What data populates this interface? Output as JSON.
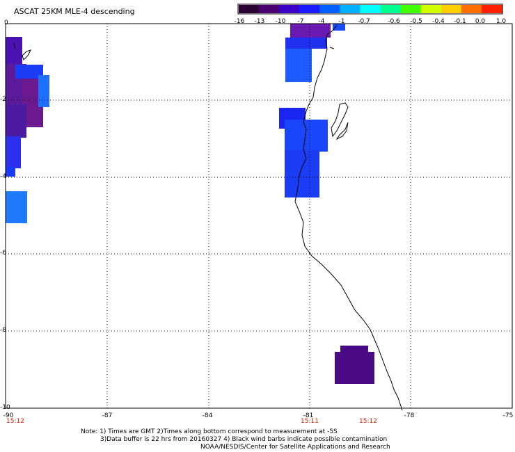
{
  "title": "ASCAT 25KM MLE-4 descending",
  "colorbar": {
    "labels": [
      "-16",
      "-13",
      "-10",
      "-7",
      "-4",
      "-1",
      "-0.7",
      "-0.6",
      "-0.5",
      "-0.4",
      "-0.1",
      "0.0",
      "1.0"
    ],
    "colors": [
      "#2b0033",
      "#4b0070",
      "#3a00c8",
      "#1a1aff",
      "#0060ff",
      "#00b0ff",
      "#00ffff",
      "#00ff90",
      "#40ff00",
      "#d0ff00",
      "#ffd000",
      "#ff7000",
      "#ff2000"
    ]
  },
  "axes": {
    "y_labels": [
      "0",
      "-2",
      "-4",
      "-6",
      "-8",
      "-10"
    ],
    "x_labels": [
      "-90",
      "-87",
      "-84",
      "-81",
      "-78",
      "-75"
    ],
    "lat_range": [
      -10,
      0
    ],
    "lon_range": [
      -90,
      -75
    ]
  },
  "time_labels": [
    "15:12",
    "15:11",
    "15:12"
  ],
  "notes": {
    "line1": "Note: 1) Times are GMT 2)Times along bottom correspond to measurement at -5S",
    "line2": "3)Data buffer is 22 hrs from 20160327 4) Black wind barbs indicate possible contamination",
    "line3": "NOAA/NESDIS/Center for Satellite Applications and Research"
  }
}
